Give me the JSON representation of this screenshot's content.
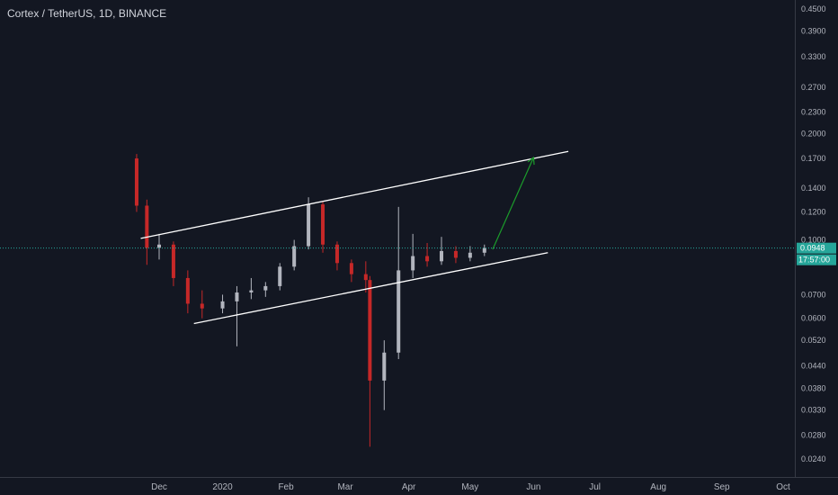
{
  "header": {
    "title": "Cortex / TetherUS, 1D, BINANCE"
  },
  "colors": {
    "background": "#131722",
    "axis_line": "#363a45",
    "up": "#b2b5be",
    "down": "#c62828",
    "trendline": "#ffffff",
    "arrow": "#1b9c2b",
    "price_line": "#26a69a"
  },
  "price_badge": {
    "value": "0.0948",
    "timer": "17:57:00"
  },
  "chart_data": {
    "type": "candlestick",
    "title": "Cortex / TetherUS, 1D, BINANCE",
    "y_scale": "log",
    "y_ticks": [
      "0.4500",
      "0.3900",
      "0.3300",
      "0.2700",
      "0.2300",
      "0.2000",
      "0.1700",
      "0.1400",
      "0.1200",
      "0.1000",
      "0.0700",
      "0.0600",
      "0.0520",
      "0.0440",
      "0.0380",
      "0.0330",
      "0.0280",
      "0.0240"
    ],
    "x_ticks": [
      "Dec",
      "2020",
      "Feb",
      "Mar",
      "Apr",
      "May",
      "Jun",
      "Jul",
      "Aug",
      "Sep",
      "Oct"
    ],
    "current_price": 0.0948,
    "approx_ohlc": [
      {
        "date": "2019-11-20",
        "open": 0.17,
        "high": 0.175,
        "low": 0.12,
        "close": 0.125
      },
      {
        "date": "2019-11-25",
        "open": 0.125,
        "high": 0.13,
        "low": 0.085,
        "close": 0.095
      },
      {
        "date": "2019-12-01",
        "open": 0.095,
        "high": 0.104,
        "low": 0.088,
        "close": 0.097
      },
      {
        "date": "2019-12-08",
        "open": 0.097,
        "high": 0.099,
        "low": 0.074,
        "close": 0.078
      },
      {
        "date": "2019-12-15",
        "open": 0.078,
        "high": 0.082,
        "low": 0.062,
        "close": 0.066
      },
      {
        "date": "2019-12-22",
        "open": 0.066,
        "high": 0.072,
        "low": 0.06,
        "close": 0.064
      },
      {
        "date": "2020-01-01",
        "open": 0.064,
        "high": 0.07,
        "low": 0.062,
        "close": 0.067
      },
      {
        "date": "2020-01-08",
        "open": 0.067,
        "high": 0.074,
        "low": 0.05,
        "close": 0.071
      },
      {
        "date": "2020-01-15",
        "open": 0.071,
        "high": 0.078,
        "low": 0.068,
        "close": 0.072
      },
      {
        "date": "2020-01-22",
        "open": 0.072,
        "high": 0.076,
        "low": 0.069,
        "close": 0.074
      },
      {
        "date": "2020-01-29",
        "open": 0.074,
        "high": 0.086,
        "low": 0.072,
        "close": 0.084
      },
      {
        "date": "2020-02-05",
        "open": 0.084,
        "high": 0.1,
        "low": 0.082,
        "close": 0.096
      },
      {
        "date": "2020-02-12",
        "open": 0.096,
        "high": 0.132,
        "low": 0.094,
        "close": 0.126
      },
      {
        "date": "2020-02-19",
        "open": 0.126,
        "high": 0.128,
        "low": 0.092,
        "close": 0.097
      },
      {
        "date": "2020-02-26",
        "open": 0.097,
        "high": 0.099,
        "low": 0.082,
        "close": 0.086
      },
      {
        "date": "2020-03-04",
        "open": 0.086,
        "high": 0.088,
        "low": 0.076,
        "close": 0.08
      },
      {
        "date": "2020-03-11",
        "open": 0.08,
        "high": 0.087,
        "low": 0.071,
        "close": 0.077
      },
      {
        "date": "2020-03-13",
        "open": 0.077,
        "high": 0.079,
        "low": 0.026,
        "close": 0.04
      },
      {
        "date": "2020-03-20",
        "open": 0.04,
        "high": 0.052,
        "low": 0.033,
        "close": 0.048
      },
      {
        "date": "2020-03-27",
        "open": 0.048,
        "high": 0.124,
        "low": 0.046,
        "close": 0.082
      },
      {
        "date": "2020-04-03",
        "open": 0.082,
        "high": 0.104,
        "low": 0.078,
        "close": 0.09
      },
      {
        "date": "2020-04-10",
        "open": 0.09,
        "high": 0.098,
        "low": 0.084,
        "close": 0.087
      },
      {
        "date": "2020-04-17",
        "open": 0.087,
        "high": 0.102,
        "low": 0.085,
        "close": 0.093
      },
      {
        "date": "2020-04-24",
        "open": 0.093,
        "high": 0.096,
        "low": 0.086,
        "close": 0.089
      },
      {
        "date": "2020-05-01",
        "open": 0.089,
        "high": 0.096,
        "low": 0.087,
        "close": 0.092
      },
      {
        "date": "2020-05-08",
        "open": 0.092,
        "high": 0.097,
        "low": 0.09,
        "close": 0.0948
      }
    ],
    "channel": {
      "upper": [
        {
          "date": "2019-11-22",
          "price": 0.101
        },
        {
          "date": "2020-06-18",
          "price": 0.178
        }
      ],
      "lower": [
        {
          "date": "2019-12-18",
          "price": 0.058
        },
        {
          "date": "2020-06-08",
          "price": 0.092
        }
      ]
    },
    "projection_arrow": [
      {
        "date": "2020-05-12",
        "price": 0.094
      },
      {
        "date": "2020-06-01",
        "price": 0.171
      }
    ]
  }
}
